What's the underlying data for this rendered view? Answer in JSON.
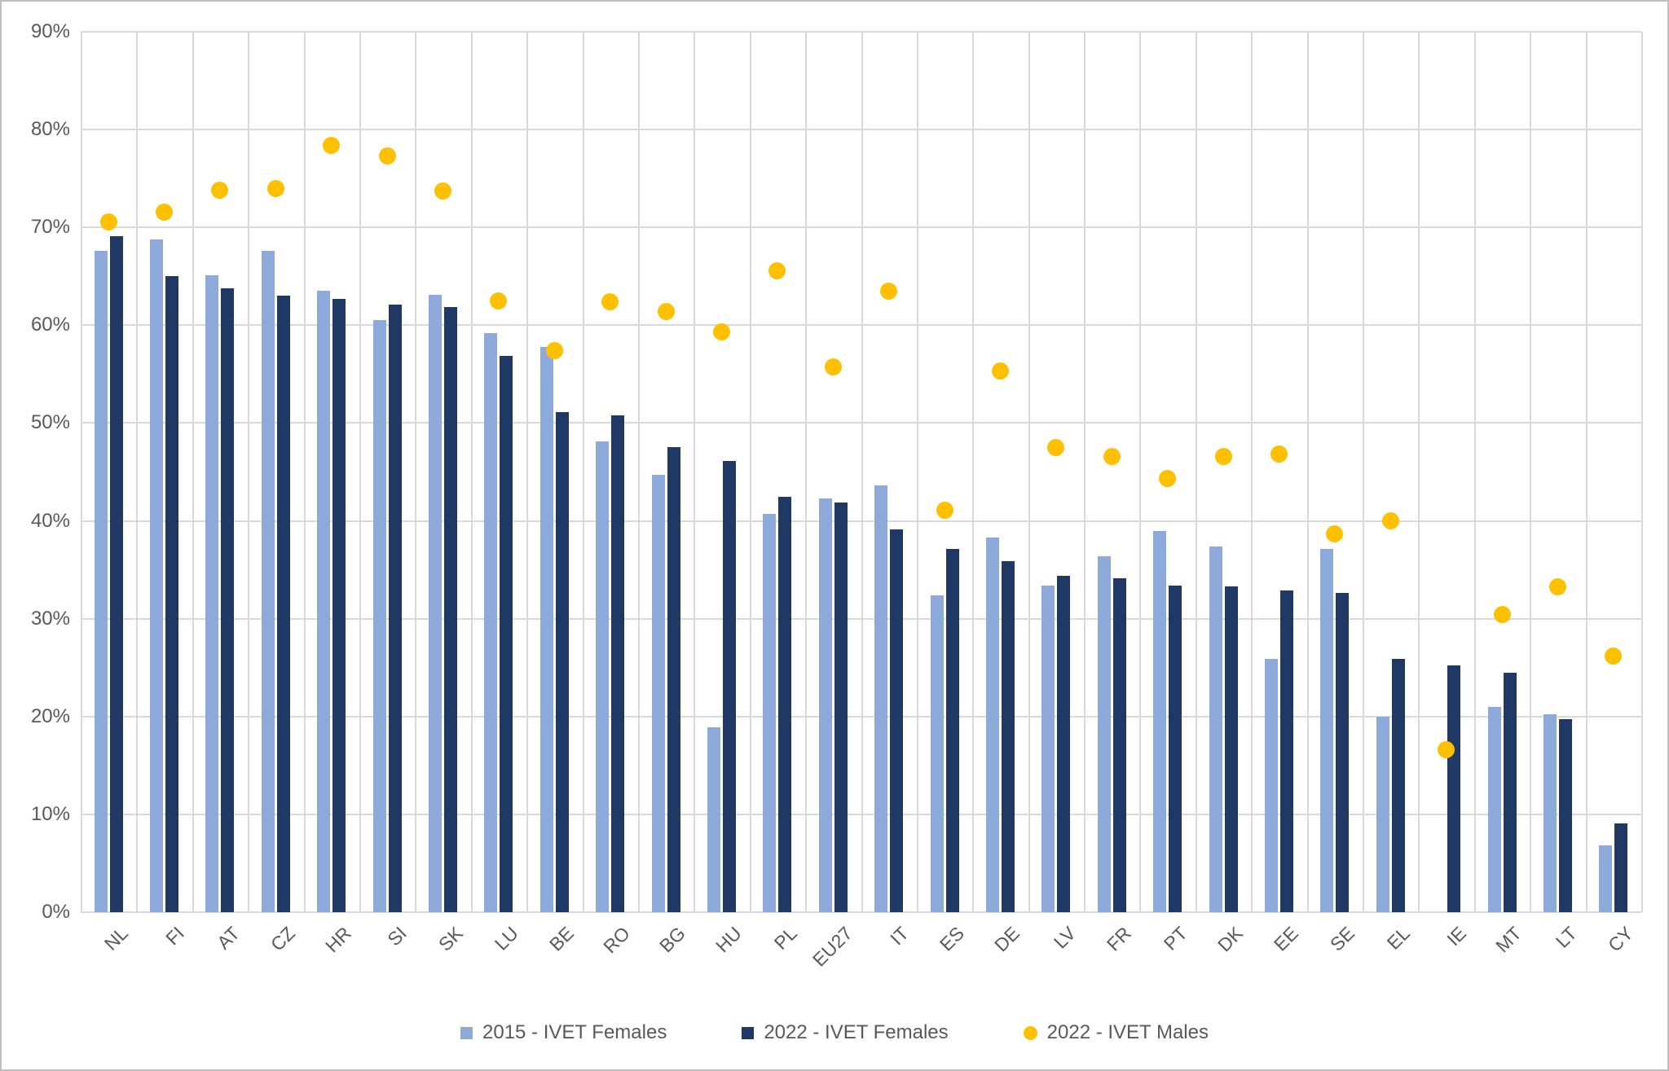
{
  "chart_data": {
    "type": "bar",
    "title": "",
    "xlabel": "",
    "ylabel": "",
    "ylim": [
      0,
      90
    ],
    "y_tick_step": 10,
    "y_tick_suffix": "%",
    "y_tick_labels": [
      "0%",
      "10%",
      "20%",
      "30%",
      "40%",
      "50%",
      "60%",
      "70%",
      "80%",
      "90%"
    ],
    "grid": true,
    "legend_position": "bottom",
    "categories": [
      "NL",
      "FI",
      "AT",
      "CZ",
      "HR",
      "SI",
      "SK",
      "LU",
      "BE",
      "RO",
      "BG",
      "HU",
      "PL",
      "EU27",
      "IT",
      "ES",
      "DE",
      "LV",
      "FR",
      "PT",
      "DK",
      "EE",
      "SE",
      "EL",
      "IE",
      "MT",
      "LT",
      "CY"
    ],
    "series": [
      {
        "name": "2015 - IVET Females",
        "type": "bar",
        "color": "#8eaadb",
        "values": [
          67.6,
          68.8,
          65.1,
          67.6,
          63.5,
          60.5,
          63.1,
          59.2,
          57.8,
          48.1,
          44.7,
          18.9,
          40.7,
          42.3,
          43.6,
          32.4,
          38.3,
          33.4,
          36.4,
          39.0,
          37.4,
          25.9,
          37.1,
          20.0,
          null,
          21.0,
          20.2,
          6.8
        ]
      },
      {
        "name": "2022 - IVET Females",
        "type": "bar",
        "color": "#1f3864",
        "values": [
          69.1,
          65.0,
          63.8,
          63.0,
          62.7,
          62.1,
          61.9,
          56.9,
          51.1,
          50.8,
          47.5,
          46.1,
          42.5,
          41.9,
          39.1,
          37.1,
          35.9,
          34.4,
          34.1,
          33.4,
          33.3,
          32.9,
          32.6,
          25.9,
          25.2,
          24.5,
          19.7,
          9.1
        ]
      },
      {
        "name": "2022 - IVET Males",
        "type": "scatter",
        "color": "#ffc000",
        "values": [
          70.6,
          71.6,
          73.8,
          74.0,
          78.4,
          77.3,
          73.7,
          62.5,
          57.4,
          62.4,
          61.4,
          59.3,
          65.6,
          55.7,
          63.5,
          41.1,
          55.3,
          47.5,
          46.6,
          44.3,
          46.6,
          46.8,
          38.7,
          40.0,
          16.6,
          30.4,
          33.3,
          26.2
        ]
      }
    ],
    "colors": {
      "grid": "#d9d9d9",
      "axis_text": "#595959",
      "background": "#ffffff",
      "border": "#bfbfbf"
    },
    "legend": [
      {
        "label": "2015 - IVET Females",
        "marker": "square",
        "color": "#8eaadb"
      },
      {
        "label": "2022 - IVET Females",
        "marker": "square",
        "color": "#1f3864"
      },
      {
        "label": "2022 - IVET Males",
        "marker": "circle",
        "color": "#ffc000"
      }
    ]
  }
}
